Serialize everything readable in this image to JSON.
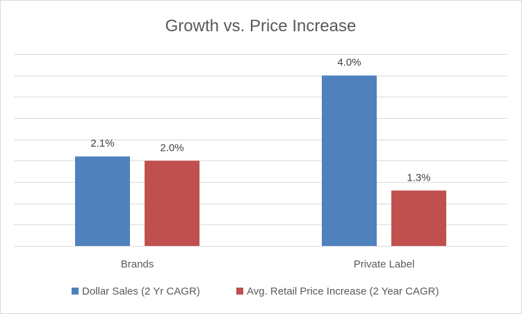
{
  "chart_data": {
    "type": "bar",
    "title": "Growth vs. Price Increase",
    "categories": [
      "Brands",
      "Private Label"
    ],
    "series": [
      {
        "name": "Dollar Sales (2 Yr CAGR)",
        "values": [
          2.1,
          4.0
        ],
        "labels": [
          "2.1%",
          "4.0%"
        ],
        "color": "#4f81bd"
      },
      {
        "name": "Avg. Retail Price Increase (2 Year CAGR)",
        "values": [
          2.0,
          1.3
        ],
        "labels": [
          "2.0%",
          "1.3%"
        ],
        "color": "#c0504d"
      }
    ],
    "ylim": [
      0,
      4.5
    ],
    "grid": true,
    "legend": "bottom"
  }
}
